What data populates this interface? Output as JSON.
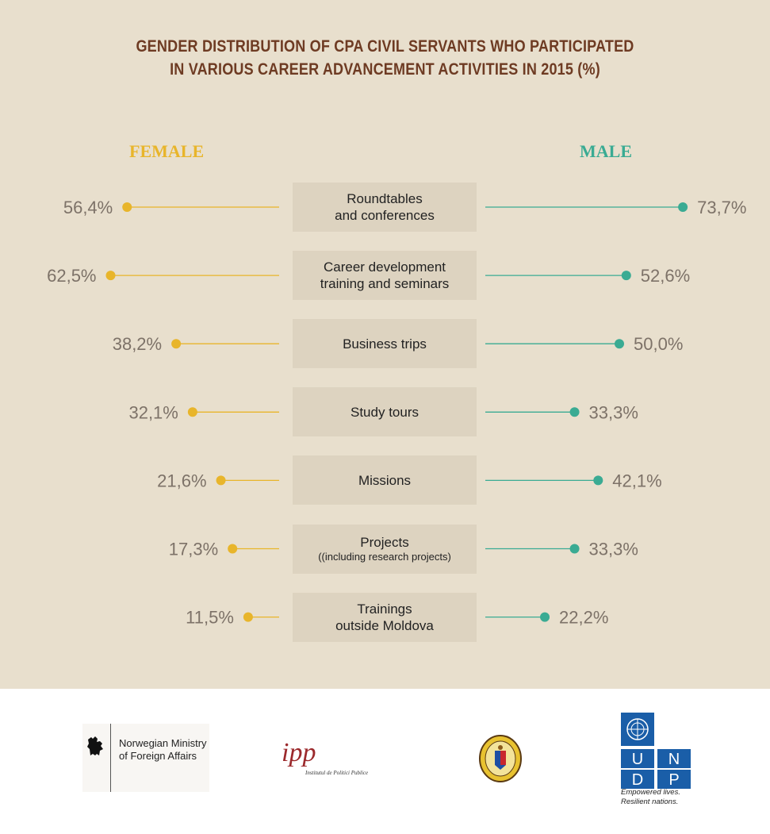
{
  "title": {
    "line1": "GENDER DISTRIBUTION OF CPA CIVIL SERVANTS WHO PARTICIPATED",
    "line2": "IN VARIOUS CAREER ADVANCEMENT ACTIVITIES IN 2015 (%)"
  },
  "colors": {
    "female": "#e8b52b",
    "male": "#3aab93",
    "title": "#6e3b23",
    "background": "#e8dfcd",
    "category_box": "#ddd3c0",
    "value_text": "#7d7268"
  },
  "chart_data": {
    "type": "bar",
    "style": "diverging lollipop",
    "title": "GENDER DISTRIBUTION OF CPA CIVIL SERVANTS WHO PARTICIPATED IN VARIOUS CAREER ADVANCEMENT ACTIVITIES IN 2015 (%)",
    "categories": [
      {
        "lines": [
          "Roundtables",
          "and conferences"
        ],
        "sub": ""
      },
      {
        "lines": [
          "Career development",
          "training and seminars"
        ],
        "sub": ""
      },
      {
        "lines": [
          "Business trips"
        ],
        "sub": ""
      },
      {
        "lines": [
          "Study tours"
        ],
        "sub": ""
      },
      {
        "lines": [
          "Missions"
        ],
        "sub": ""
      },
      {
        "lines": [
          "Projects"
        ],
        "sub": "((including research projects)"
      },
      {
        "lines": [
          "Trainings",
          "outside Moldova"
        ],
        "sub": ""
      }
    ],
    "series": [
      {
        "name": "FEMALE",
        "values": [
          56.4,
          62.5,
          38.2,
          32.1,
          21.6,
          17.3,
          11.5
        ],
        "labels": [
          "56,4%",
          "62,5%",
          "38,2%",
          "32,1%",
          "21,6%",
          "17,3%",
          "11,5%"
        ]
      },
      {
        "name": "MALE",
        "values": [
          73.7,
          52.6,
          50.0,
          33.3,
          42.1,
          33.3,
          22.2
        ],
        "labels": [
          "73,7%",
          "52,6%",
          "50,0%",
          "33,3%",
          "42,1%",
          "33,3%",
          "22,2%"
        ]
      }
    ]
  },
  "footer": {
    "norway": {
      "line1": "Norwegian Ministry",
      "line2": "of Foreign Affairs"
    },
    "ipp": {
      "mark": "ipp",
      "text": "Institutul de Politici Publice"
    },
    "seal": {
      "icon": "national-seal-icon"
    },
    "undp": {
      "letters": [
        "U",
        "N",
        "D",
        "P"
      ],
      "tagline1": "Empowered lives.",
      "tagline2": "Resilient nations."
    }
  }
}
